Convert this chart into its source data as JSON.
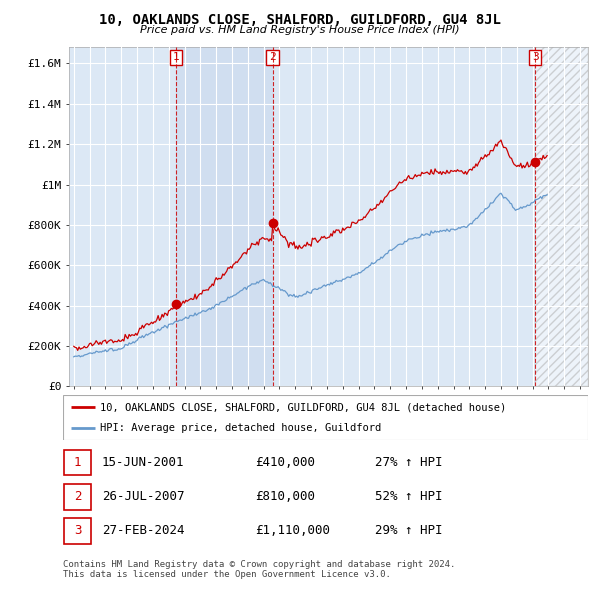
{
  "title": "10, OAKLANDS CLOSE, SHALFORD, GUILDFORD, GU4 8JL",
  "subtitle": "Price paid vs. HM Land Registry's House Price Index (HPI)",
  "ylabel_ticks": [
    "£0",
    "£200K",
    "£400K",
    "£600K",
    "£800K",
    "£1M",
    "£1.2M",
    "£1.4M",
    "£1.6M"
  ],
  "ytick_values": [
    0,
    200000,
    400000,
    600000,
    800000,
    1000000,
    1200000,
    1400000,
    1600000
  ],
  "ylim": [
    0,
    1680000
  ],
  "xlim_start": 1994.7,
  "xlim_end": 2027.5,
  "plot_bg_color": "#dce8f5",
  "grid_color": "#ffffff",
  "red_color": "#cc0000",
  "blue_color": "#6699cc",
  "sale_dates": [
    2001.458,
    2007.569,
    2024.163
  ],
  "sale_prices": [
    410000,
    810000,
    1110000
  ],
  "sale_labels": [
    "1",
    "2",
    "3"
  ],
  "highlight_start": 2001.458,
  "highlight_end": 2007.569,
  "legend_label_red": "10, OAKLANDS CLOSE, SHALFORD, GUILDFORD, GU4 8JL (detached house)",
  "legend_label_blue": "HPI: Average price, detached house, Guildford",
  "table_data": [
    [
      "1",
      "15-JUN-2001",
      "£410,000",
      "27% ↑ HPI"
    ],
    [
      "2",
      "26-JUL-2007",
      "£810,000",
      "52% ↑ HPI"
    ],
    [
      "3",
      "27-FEB-2024",
      "£1,110,000",
      "29% ↑ HPI"
    ]
  ],
  "footer": "Contains HM Land Registry data © Crown copyright and database right 2024.\nThis data is licensed under the Open Government Licence v3.0.",
  "hatched_region_start": 2024.163,
  "hatched_region_end": 2027.5
}
